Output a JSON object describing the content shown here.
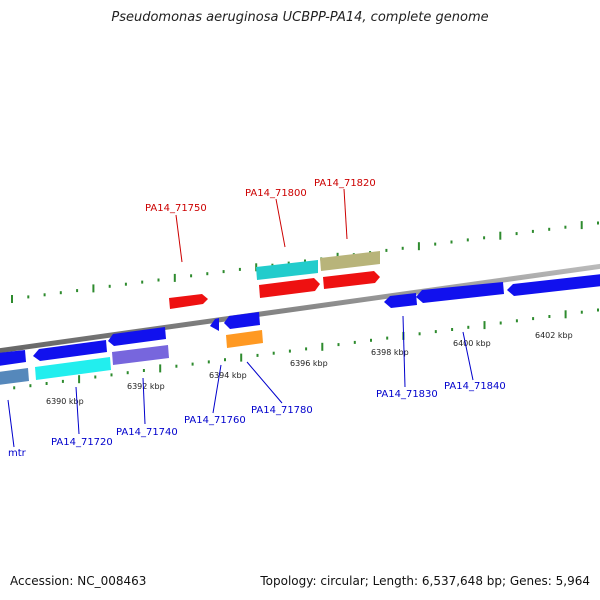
{
  "title": "Pseudomonas aeruginosa UCBPP-PA14, complete genome",
  "footer": {
    "accession": "Accession: NC_008463",
    "summary": "Topology: circular; Length: 6,537,648 bp; Genes: 5,964"
  },
  "scale": {
    "labels": [
      "6390 kbp",
      "6392 kbp",
      "6394 kbp",
      "6396 kbp",
      "6398 kbp",
      "6400 kbp",
      "6402 kbp"
    ]
  },
  "gene_labels": [
    {
      "name": "PA14_71750",
      "strand": "forward",
      "color": "#cc0000"
    },
    {
      "name": "PA14_71800",
      "strand": "forward",
      "color": "#cc0000"
    },
    {
      "name": "PA14_71820",
      "strand": "forward",
      "color": "#cc0000"
    },
    {
      "name": "mtr",
      "strand": "reverse",
      "color": "#0000cc"
    },
    {
      "name": "PA14_71720",
      "strand": "reverse",
      "color": "#0000cc"
    },
    {
      "name": "PA14_71740",
      "strand": "reverse",
      "color": "#0000cc"
    },
    {
      "name": "PA14_71760",
      "strand": "reverse",
      "color": "#0000cc"
    },
    {
      "name": "PA14_71780",
      "strand": "reverse",
      "color": "#0000cc"
    },
    {
      "name": "PA14_71830",
      "strand": "reverse",
      "color": "#0000cc"
    },
    {
      "name": "PA14_71840",
      "strand": "reverse",
      "color": "#0000cc"
    }
  ],
  "colors": {
    "backbone": "#888888",
    "tick": "#2e8b2e",
    "forward_gene": "#ee1111",
    "reverse_gene": "#1111ee",
    "cyan_gene": "#22cccc",
    "khaki_gene": "#b8b47a",
    "purple_gene": "#7766dd",
    "orange_gene": "#ff9922",
    "steel_gene": "#5588bb"
  }
}
